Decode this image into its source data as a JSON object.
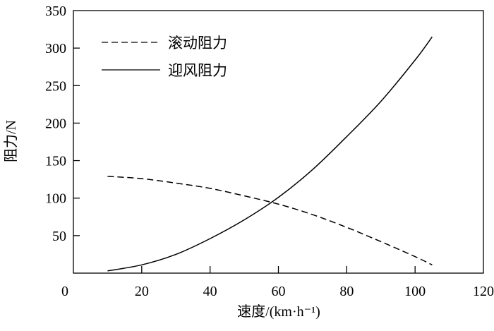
{
  "chart_data": {
    "type": "line",
    "title": "",
    "xlabel": "速度/(km·h⁻¹)",
    "ylabel": "阻力/N",
    "xlim": [
      0,
      120
    ],
    "ylim": [
      0,
      350
    ],
    "xticks": [
      0,
      20,
      40,
      60,
      80,
      100,
      120
    ],
    "yticks": [
      50,
      100,
      150,
      200,
      250,
      300,
      350
    ],
    "grid": false,
    "legend_position": "top-left",
    "x": [
      10,
      20,
      30,
      40,
      50,
      60,
      70,
      80,
      90,
      100,
      105
    ],
    "series": [
      {
        "name": "滚动阻力",
        "style": "dashed",
        "color": "#000000",
        "values": [
          129,
          126,
          120,
          113,
          103,
          92,
          78,
          61,
          42,
          22,
          11
        ]
      },
      {
        "name": "迎风阻力",
        "style": "solid",
        "color": "#000000",
        "values": [
          3,
          11,
          25,
          46,
          71,
          101,
          138,
          182,
          229,
          284,
          315
        ]
      }
    ]
  }
}
